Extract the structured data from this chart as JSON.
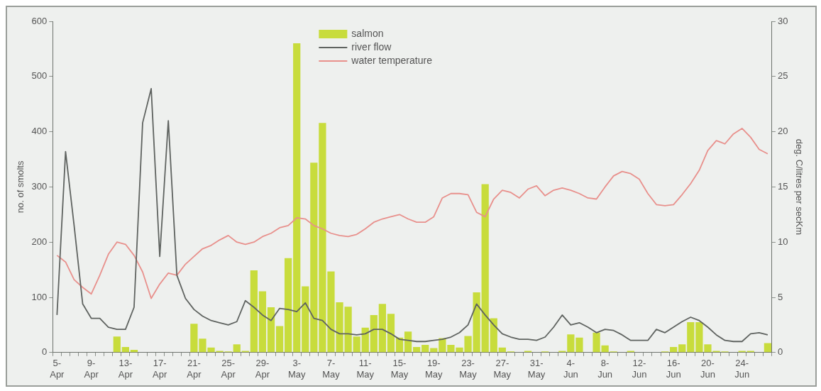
{
  "chart_data": {
    "type": "bar",
    "categories": [
      "5-Apr",
      null,
      null,
      null,
      "9-Apr",
      null,
      null,
      null,
      "13-Apr",
      null,
      null,
      null,
      "17-Apr",
      null,
      null,
      null,
      "21-Apr",
      null,
      null,
      null,
      "25-Apr",
      null,
      null,
      null,
      "29-Apr",
      null,
      null,
      null,
      "3-May",
      null,
      null,
      null,
      "7-May",
      null,
      null,
      null,
      "11-May",
      null,
      null,
      null,
      "15-May",
      null,
      null,
      null,
      "19-May",
      null,
      null,
      null,
      "23-May",
      null,
      null,
      null,
      "27-May",
      null,
      null,
      null,
      "31-May",
      null,
      null,
      null,
      "4-Jun",
      null,
      null,
      null,
      "8-Jun",
      null,
      null,
      null,
      "12-Jun",
      null,
      null,
      null,
      "16-Jun",
      null,
      null,
      null,
      "20-Jun",
      null,
      null,
      null,
      "24-Jun",
      null,
      null,
      null
    ],
    "series": [
      {
        "name": "salmon",
        "color": "#c8dc3c",
        "values": [
          0,
          0,
          0,
          0,
          0,
          0,
          0,
          29,
          10,
          5,
          0,
          0,
          0,
          0,
          0,
          0,
          52,
          25,
          9,
          3,
          2,
          15,
          3,
          149,
          111,
          82,
          48,
          171,
          560,
          120,
          344,
          416,
          147,
          91,
          83,
          29,
          45,
          68,
          88,
          70,
          27,
          38,
          10,
          14,
          8,
          26,
          14,
          9,
          30,
          109,
          305,
          62,
          9,
          2,
          0,
          3,
          0,
          2,
          0,
          3,
          33,
          27,
          0,
          36,
          13,
          2,
          0,
          3,
          0,
          0,
          0,
          2,
          10,
          15,
          55,
          55,
          15,
          3,
          2,
          0,
          3,
          3,
          0,
          17
        ]
      },
      {
        "name": "river flow",
        "type": "line",
        "axis": "y2",
        "color": "#5f6360",
        "values": [
          3.4,
          18.2,
          11.5,
          4.4,
          3.1,
          3.1,
          2.3,
          2.1,
          2.1,
          4.1,
          20.8,
          23.9,
          8.7,
          21.0,
          7.0,
          4.9,
          3.9,
          3.3,
          2.9,
          2.7,
          2.5,
          2.8,
          4.7,
          4.1,
          3.4,
          2.9,
          4.0,
          3.9,
          3.7,
          4.5,
          3.1,
          2.9,
          2.1,
          1.7,
          1.7,
          1.6,
          1.7,
          2.1,
          2.1,
          1.7,
          1.2,
          1.1,
          1.0,
          1.0,
          1.1,
          1.2,
          1.4,
          1.8,
          2.5,
          4.4,
          3.4,
          2.5,
          1.7,
          1.4,
          1.2,
          1.2,
          1.1,
          1.4,
          2.3,
          3.4,
          2.5,
          2.7,
          2.3,
          1.8,
          2.1,
          2.0,
          1.6,
          1.1,
          1.1,
          1.1,
          2.1,
          1.8,
          2.3,
          2.8,
          3.2,
          2.9,
          2.3,
          1.6,
          1.1,
          1.0,
          1.0,
          1.7,
          1.8,
          1.6
        ]
      },
      {
        "name": "water temperature",
        "type": "line",
        "axis": "y2",
        "color": "#e8908c",
        "values": [
          8.8,
          8.2,
          6.6,
          5.9,
          5.3,
          7.0,
          8.9,
          10.0,
          9.8,
          8.8,
          7.3,
          4.9,
          6.2,
          7.2,
          7.0,
          8.0,
          8.7,
          9.4,
          9.7,
          10.2,
          10.6,
          10.0,
          9.8,
          10.0,
          10.5,
          10.8,
          11.3,
          11.5,
          12.2,
          12.1,
          11.5,
          11.2,
          10.8,
          10.6,
          10.5,
          10.7,
          11.2,
          11.8,
          12.1,
          12.3,
          12.5,
          12.1,
          11.8,
          11.8,
          12.3,
          14.0,
          14.4,
          14.4,
          14.3,
          12.7,
          12.3,
          13.9,
          14.7,
          14.5,
          14.0,
          14.8,
          15.1,
          14.2,
          14.7,
          14.9,
          14.7,
          14.4,
          14.0,
          13.9,
          15.0,
          16.0,
          16.4,
          16.2,
          15.7,
          14.4,
          13.4,
          13.3,
          13.4,
          14.3,
          15.3,
          16.5,
          18.3,
          19.2,
          18.9,
          19.8,
          20.3,
          19.5,
          18.4,
          18.0
        ]
      }
    ],
    "ylabel": "no. of smolts",
    "y2label": "deg. C/litres per secKm",
    "ylim": [
      0,
      600
    ],
    "yticks": [
      0,
      100,
      200,
      300,
      400,
      500,
      600
    ],
    "y2lim": [
      0,
      30
    ],
    "y2ticks": [
      0,
      5,
      10,
      15,
      20,
      25,
      30
    ],
    "grid": false,
    "legend": "top",
    "marker": "none",
    "line_style": "solid"
  }
}
